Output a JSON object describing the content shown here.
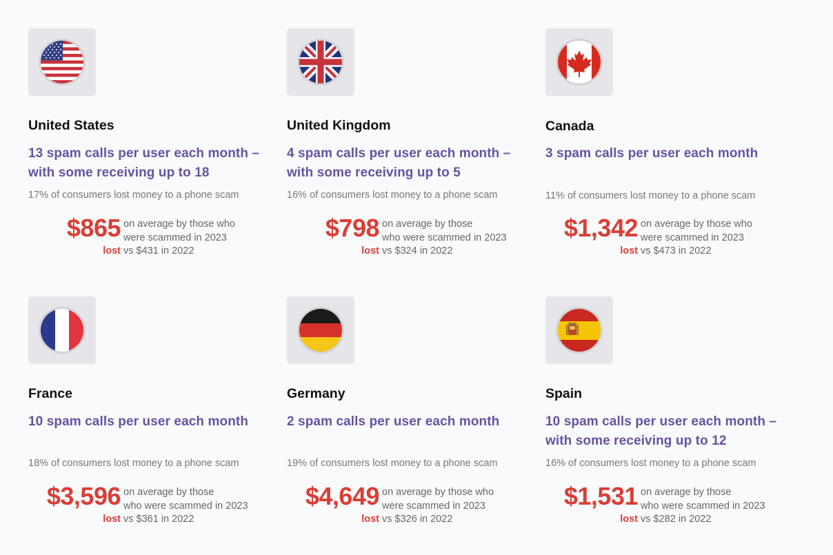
{
  "cards": [
    {
      "country": "United States",
      "flag_icon": "us-flag-icon",
      "calls": "13 spam calls per user each month – with some receiving up to 18",
      "lost_pct": "17% of consumers lost money to a phone scam",
      "amount": "$865",
      "lost": "lost",
      "avg_lines": [
        "on average by those who",
        "were scammed in 2023",
        "vs $431 in 2022"
      ]
    },
    {
      "country": "United Kingdom",
      "flag_icon": "uk-flag-icon",
      "calls": "4 spam calls per user each month – with some receiving up to 5",
      "lost_pct": "16% of consumers lost money to a phone scam",
      "amount": "$798",
      "lost": "lost",
      "avg_lines": [
        "on average by those",
        "who were scammed in 2023",
        "vs $324 in 2022"
      ]
    },
    {
      "country": "Canada",
      "flag_icon": "canada-flag-icon",
      "calls": "3 spam calls per user each month",
      "lost_pct": "11% of consumers lost money to a phone scam",
      "amount": "$1,342",
      "lost": "lost",
      "avg_lines": [
        "on average by those who",
        "were scammed in 2023",
        "vs $473 in 2022"
      ]
    },
    {
      "country": "France",
      "flag_icon": "france-flag-icon",
      "calls": "10 spam calls per user each month",
      "lost_pct": "18% of consumers lost money to a phone scam",
      "amount": "$3,596",
      "lost": "lost",
      "avg_lines": [
        "on average by those",
        "who were scammed in 2023",
        "vs $361 in 2022"
      ]
    },
    {
      "country": "Germany",
      "flag_icon": "germany-flag-icon",
      "calls": "2 spam calls per user each month",
      "lost_pct": "19% of consumers lost money to a phone scam",
      "amount": "$4,649",
      "lost": "lost",
      "avg_lines": [
        "on average by those who",
        "were scammed in 2023",
        "vs $326 in 2022"
      ]
    },
    {
      "country": "Spain",
      "flag_icon": "spain-flag-icon",
      "calls": "10 spam calls per user each month – with some receiving up to 12",
      "lost_pct": "16% of consumers lost money to a phone scam",
      "amount": "$1,531",
      "lost": "lost",
      "avg_lines": [
        "on average by those",
        "who were scammed in 2023",
        "vs $282 in 2022"
      ]
    }
  ],
  "colors": {
    "heading": "#111111",
    "calls": "#6553a0",
    "amount": "#d93e35",
    "muted": "#777777",
    "tile": "#e6e6ea"
  }
}
